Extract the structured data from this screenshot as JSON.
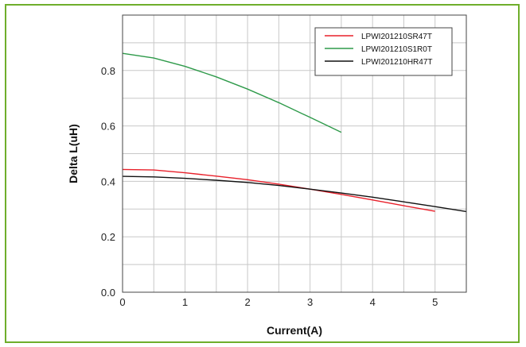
{
  "colors": {
    "frame": "#6fae2b",
    "grid": "#c8c8c8"
  },
  "chart_data": {
    "type": "line",
    "xlabel": "Current(A)",
    "ylabel": "Delta L(uH)",
    "xlim": [
      0,
      5.5
    ],
    "ylim": [
      0,
      1.0
    ],
    "x_ticks": [
      0,
      1,
      2,
      3,
      4,
      5
    ],
    "y_ticks": [
      0.0,
      0.2,
      0.4,
      0.6,
      0.8
    ],
    "grid": true,
    "legend_position": "top-right",
    "series": [
      {
        "name": "LPWI201210SR47T",
        "color": "#e8202a",
        "x": [
          0,
          0.5,
          1.0,
          1.5,
          2.0,
          2.5,
          3.0,
          3.5,
          4.0,
          4.5,
          5.0
        ],
        "y": [
          0.443,
          0.441,
          0.431,
          0.419,
          0.406,
          0.39,
          0.372,
          0.353,
          0.333,
          0.312,
          0.292
        ]
      },
      {
        "name": "LPWI201210S1R0T",
        "color": "#2e9a4a",
        "x": [
          0,
          0.5,
          1.0,
          1.5,
          2.0,
          2.5,
          3.0,
          3.5
        ],
        "y": [
          0.862,
          0.845,
          0.815,
          0.777,
          0.733,
          0.684,
          0.631,
          0.577
        ]
      },
      {
        "name": "LPWI201210HR47T",
        "color": "#111111",
        "x": [
          0,
          0.5,
          1.0,
          1.5,
          2.0,
          2.5,
          3.0,
          3.5,
          4.0,
          4.5,
          5.0,
          5.5
        ],
        "y": [
          0.418,
          0.416,
          0.411,
          0.404,
          0.396,
          0.385,
          0.372,
          0.358,
          0.343,
          0.326,
          0.309,
          0.291
        ]
      }
    ]
  }
}
